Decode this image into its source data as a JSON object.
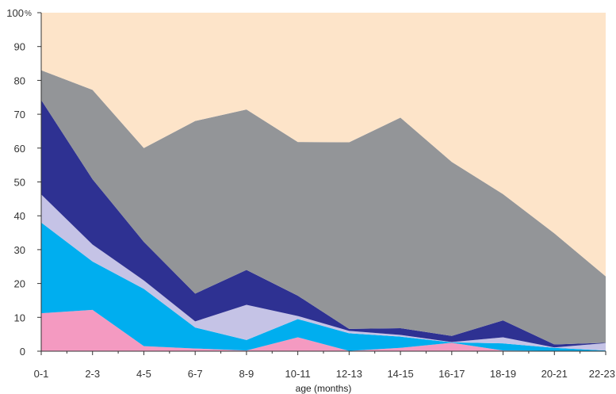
{
  "chart_data": {
    "type": "area",
    "stacked": true,
    "categories": [
      "0-1",
      "2-3",
      "4-5",
      "6-7",
      "8-9",
      "10-11",
      "12-13",
      "14-15",
      "16-17",
      "18-19",
      "20-21",
      "22-23"
    ],
    "xlabel": "age (months)",
    "ylabel": "",
    "y_unit": "%",
    "ylim": [
      0,
      100
    ],
    "yticks": [
      0,
      10,
      20,
      30,
      40,
      50,
      60,
      70,
      80,
      90,
      100
    ],
    "grid": false,
    "legend": "none",
    "series": [
      {
        "color": "#f49ac1",
        "values": [
          11.2,
          12.2,
          1.5,
          0.8,
          0.2,
          4.1,
          0.1,
          1.0,
          2.5,
          0.2,
          0.1,
          0.1
        ]
      },
      {
        "color": "#00aeef",
        "values": [
          26.8,
          14.3,
          16.9,
          6.2,
          3.1,
          5.4,
          5.2,
          3.3,
          0.1,
          2.1,
          0.9,
          0.1
        ]
      },
      {
        "color": "#c5c3e6",
        "values": [
          8.3,
          5.0,
          2.5,
          1.8,
          10.4,
          0.9,
          0.7,
          0.5,
          0.1,
          1.8,
          0.1,
          2.2
        ]
      },
      {
        "color": "#2e3192",
        "values": [
          27.9,
          19.3,
          11.4,
          8.2,
          10.3,
          6.0,
          0.6,
          2.0,
          1.8,
          5.0,
          0.9,
          0.1
        ]
      },
      {
        "color": "#939598",
        "values": [
          8.8,
          26.4,
          27.7,
          51.0,
          47.4,
          45.4,
          55.1,
          62.2,
          51.4,
          37.3,
          32.8,
          19.6
        ]
      },
      {
        "color": "#fde4c9",
        "values": [
          17.0,
          22.8,
          40.0,
          32.0,
          28.6,
          38.2,
          38.3,
          31.0,
          44.1,
          53.6,
          65.2,
          77.9
        ]
      }
    ]
  }
}
